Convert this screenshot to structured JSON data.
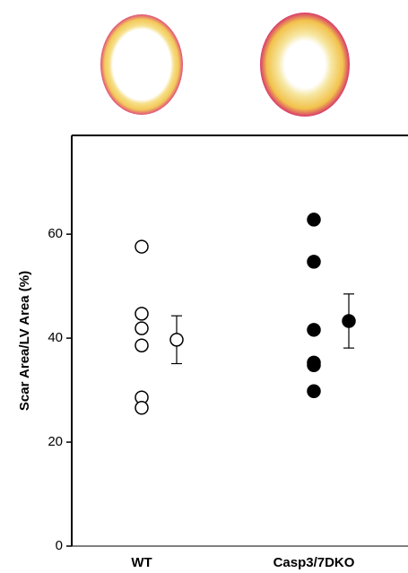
{
  "chart_data": {
    "type": "dot",
    "ylabel": "Scar Area/LV Area (%)",
    "categories": [
      "WT",
      "Casp3/7DKO"
    ],
    "groups": [
      {
        "values": [
          57.6,
          44.7,
          41.9,
          38.6,
          28.6,
          26.6
        ],
        "mean": 39.7,
        "error": 4.6,
        "filled": false,
        "color": "#000000"
      },
      {
        "values": [
          62.8,
          54.7,
          41.6,
          35.3,
          34.8,
          29.8
        ],
        "mean": 43.3,
        "error": 5.2,
        "filled": true,
        "color": "#000000"
      }
    ],
    "ylim": [
      0,
      79
    ],
    "yticks": [
      0,
      20,
      40,
      60
    ],
    "grid": false
  }
}
